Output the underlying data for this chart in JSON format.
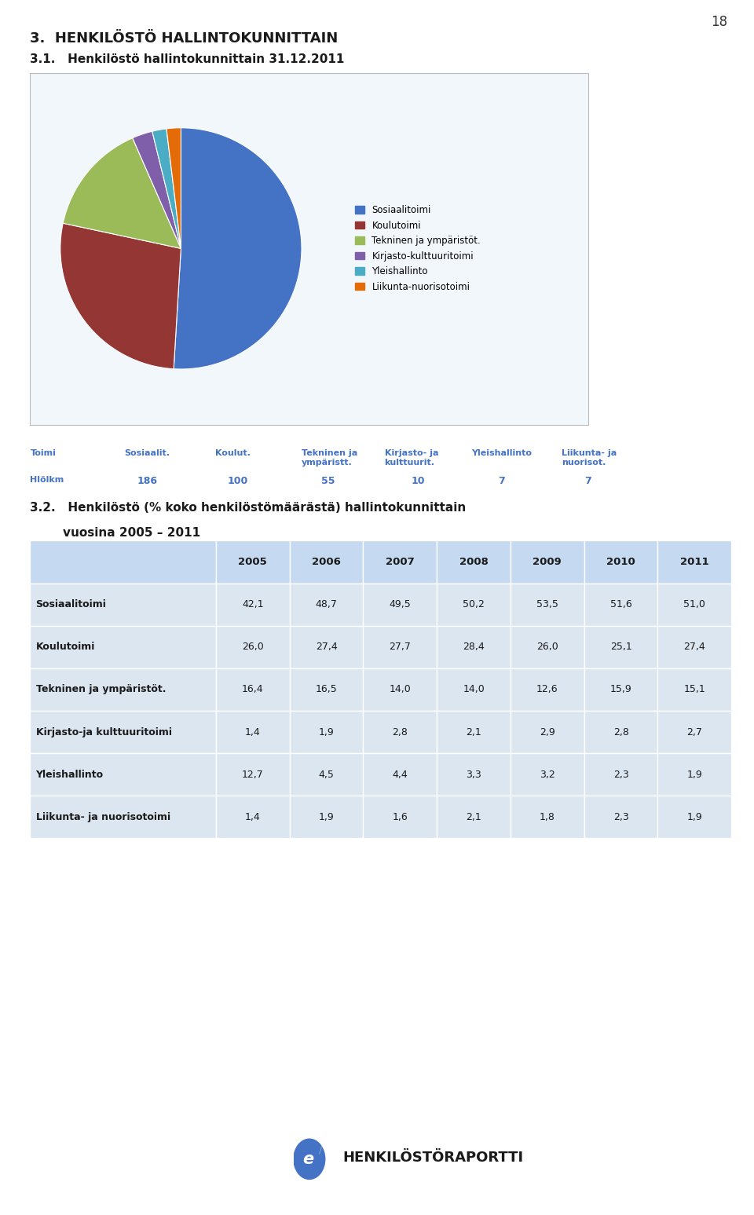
{
  "page_number": "18",
  "section_title": "3.  HENKILÖSTÖ HALLINTOKUNNITTAIN",
  "subsection_31": "3.1.   Henkilöstö hallintokunnittain 31.12.2011",
  "pie_values": [
    186,
    100,
    55,
    10,
    7,
    7
  ],
  "pie_colors": [
    "#4472C4",
    "#943634",
    "#9BBB59",
    "#7F5FA9",
    "#4BACC6",
    "#E36C09"
  ],
  "pie_legend_labels": [
    "Sosiaalitoimi",
    "Koulutoimi",
    "Tekninen ja ympäristöt.",
    "Kirjasto-kulttuuritoimi",
    "Yleishallinto",
    "Liikunta-nuorisotoimi"
  ],
  "col_labels_top": [
    "Toimi",
    "Sosiaalit.",
    "Koulut.",
    "Tekninen ja\nympäristt.",
    "Kirjasto- ja\nkulttuurit.",
    "Yleishallinto",
    "Liikunta- ja\nnuorisot."
  ],
  "col_labels_bot_label": "Hlölkm",
  "col_labels_bot_vals": [
    "186",
    "100",
    "55",
    "10",
    "7",
    "7"
  ],
  "subsection_32_line1": "3.2.   Henkilöstö (% koko henkilöstömäärästä) hallintokunnittain",
  "subsection_32_line2": "        vuosina 2005 – 2011",
  "table2_years": [
    "2005",
    "2006",
    "2007",
    "2008",
    "2009",
    "2010",
    "2011"
  ],
  "table2_rows": [
    [
      "Sosiaalitoimi",
      "42,1",
      "48,7",
      "49,5",
      "50,2",
      "53,5",
      "51,6",
      "51,0"
    ],
    [
      "Koulutoimi",
      "26,0",
      "27,4",
      "27,7",
      "28,4",
      "26,0",
      "25,1",
      "27,4"
    ],
    [
      "Tekninen ja ympäristöt.",
      "16,4",
      "16,5",
      "14,0",
      "14,0",
      "12,6",
      "15,9",
      "15,1"
    ],
    [
      "Kirjasto-ja kulttuuritoimi",
      "1,4",
      "1,9",
      "2,8",
      "2,1",
      "2,9",
      "2,8",
      "2,7"
    ],
    [
      "Yleishallinto",
      "12,7",
      "4,5",
      "4,4",
      "3,3",
      "3,2",
      "2,3",
      "1,9"
    ],
    [
      "Liikunta- ja nuorisotoimi",
      "1,4",
      "1,9",
      "1,6",
      "2,1",
      "1,8",
      "2,3",
      "1,9"
    ]
  ],
  "bg_color": "#ffffff",
  "text_color_blue": "#4472C4",
  "text_color_dark": "#1a1a1a",
  "table_header_bg": "#C5D9F1",
  "table_row_bg": "#DCE6F1",
  "footer_text": "HENKILÖSTÖRAPORTTI"
}
